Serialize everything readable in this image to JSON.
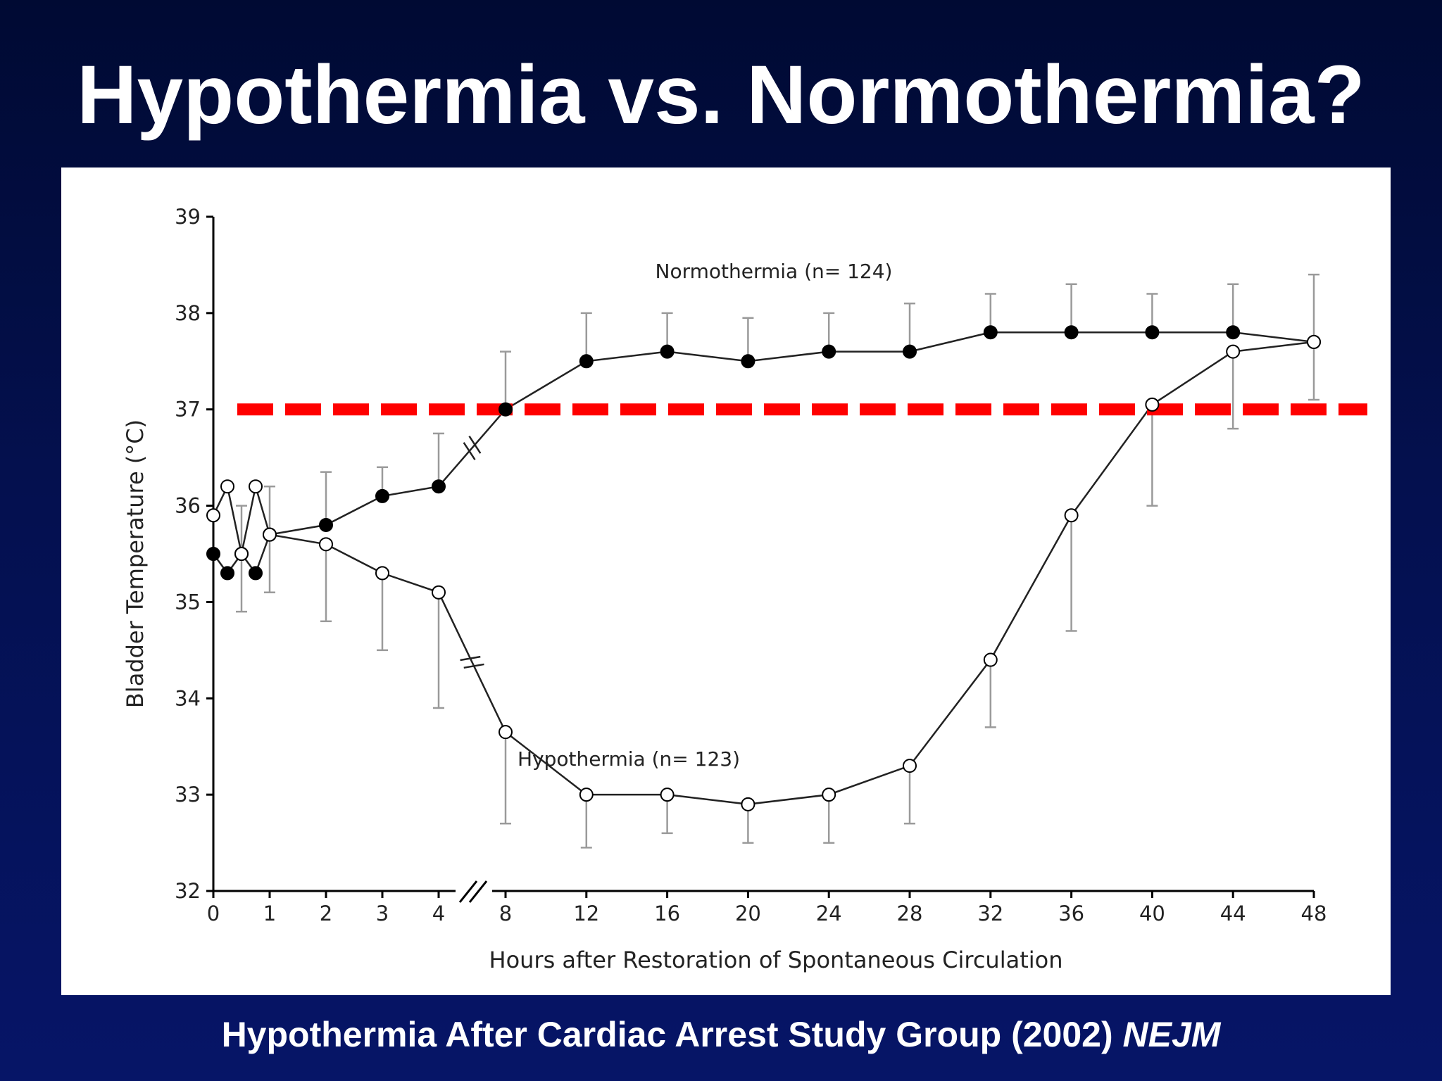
{
  "slide": {
    "title": "Hypothermia vs. Normothermia?",
    "citation_text": "Hypothermia After Cardiac Arrest Study Group (2002) ",
    "citation_journal": "NEJM"
  },
  "colors": {
    "background_top": "#000a33",
    "background_bottom": "#061567",
    "reference_line": "#ff0000",
    "series_line": "#222222",
    "error_bar": "#9a9a9a"
  },
  "chart_data": {
    "type": "line",
    "xlabel": "Hours after Restoration of Spontaneous Circulation",
    "ylabel": "Bladder Temperature (°C)",
    "ylim": [
      32,
      39
    ],
    "yticks": [
      32,
      33,
      34,
      35,
      36,
      37,
      38,
      39
    ],
    "x_tick_labels": [
      "0",
      "1",
      "2",
      "3",
      "4",
      "8",
      "12",
      "16",
      "20",
      "24",
      "28",
      "32",
      "36",
      "40",
      "44",
      "48"
    ],
    "x_axis_break": "between 4 and 8",
    "reference_line": {
      "y": 37,
      "style": "dashed",
      "color": "#ff0000"
    },
    "grid": false,
    "series": [
      {
        "name": "Normothermia (n=124)",
        "marker": "filled-circle",
        "points": [
          {
            "x": 0,
            "y": 35.5,
            "err": null
          },
          {
            "x": 0.25,
            "y": 35.3,
            "err": null
          },
          {
            "x": 0.5,
            "y": 35.5,
            "err": null
          },
          {
            "x": 0.75,
            "y": 35.3,
            "err": null
          },
          {
            "x": 1,
            "y": 35.7,
            "err": [
              35.1,
              36.2
            ]
          },
          {
            "x": 2,
            "y": 35.8,
            "err": [
              null,
              36.35
            ]
          },
          {
            "x": 3,
            "y": 36.1,
            "err": [
              null,
              36.4
            ]
          },
          {
            "x": 4,
            "y": 36.2,
            "err": [
              null,
              36.75
            ]
          },
          {
            "x": 8,
            "y": 37.0,
            "err": [
              null,
              37.6
            ]
          },
          {
            "x": 12,
            "y": 37.5,
            "err": [
              null,
              38.0
            ]
          },
          {
            "x": 16,
            "y": 37.6,
            "err": [
              null,
              38.0
            ]
          },
          {
            "x": 20,
            "y": 37.5,
            "err": [
              null,
              37.95
            ]
          },
          {
            "x": 24,
            "y": 37.6,
            "err": [
              null,
              38.0
            ]
          },
          {
            "x": 28,
            "y": 37.6,
            "err": [
              null,
              38.1
            ]
          },
          {
            "x": 32,
            "y": 37.8,
            "err": [
              null,
              38.2
            ]
          },
          {
            "x": 36,
            "y": 37.8,
            "err": [
              null,
              38.3
            ]
          },
          {
            "x": 40,
            "y": 37.8,
            "err": [
              null,
              38.2
            ]
          },
          {
            "x": 44,
            "y": 37.8,
            "err": [
              null,
              38.3
            ]
          },
          {
            "x": 48,
            "y": 37.7,
            "err": [
              37.1,
              38.4
            ]
          }
        ]
      },
      {
        "name": "Hypothermia (n=123)",
        "marker": "open-circle",
        "points": [
          {
            "x": 0,
            "y": 35.9,
            "err": null
          },
          {
            "x": 0.25,
            "y": 36.2,
            "err": null
          },
          {
            "x": 0.5,
            "y": 35.5,
            "err": [
              34.9,
              36.0
            ]
          },
          {
            "x": 0.75,
            "y": 36.2,
            "err": null
          },
          {
            "x": 1,
            "y": 35.7,
            "err": null
          },
          {
            "x": 2,
            "y": 35.6,
            "err": [
              34.8,
              null
            ]
          },
          {
            "x": 3,
            "y": 35.3,
            "err": [
              34.5,
              null
            ]
          },
          {
            "x": 4,
            "y": 35.1,
            "err": [
              33.9,
              null
            ]
          },
          {
            "x": 8,
            "y": 33.65,
            "err": [
              32.7,
              null
            ]
          },
          {
            "x": 12,
            "y": 33.0,
            "err": [
              32.45,
              null
            ]
          },
          {
            "x": 16,
            "y": 33.0,
            "err": [
              32.6,
              null
            ]
          },
          {
            "x": 20,
            "y": 32.9,
            "err": [
              32.5,
              null
            ]
          },
          {
            "x": 24,
            "y": 33.0,
            "err": [
              32.5,
              null
            ]
          },
          {
            "x": 28,
            "y": 33.3,
            "err": [
              32.7,
              null
            ]
          },
          {
            "x": 32,
            "y": 34.4,
            "err": [
              33.7,
              null
            ]
          },
          {
            "x": 36,
            "y": 35.9,
            "err": [
              34.7,
              null
            ]
          },
          {
            "x": 40,
            "y": 37.05,
            "err": [
              36.0,
              null
            ]
          },
          {
            "x": 44,
            "y": 37.6,
            "err": [
              36.8,
              null
            ]
          },
          {
            "x": 48,
            "y": 37.7,
            "err": null
          }
        ]
      }
    ],
    "annotations": [
      {
        "text": "Normothermia (n= 124)",
        "near": "top curve"
      },
      {
        "text": "Hypothermia (n= 123)",
        "near": "bottom curve"
      }
    ]
  }
}
